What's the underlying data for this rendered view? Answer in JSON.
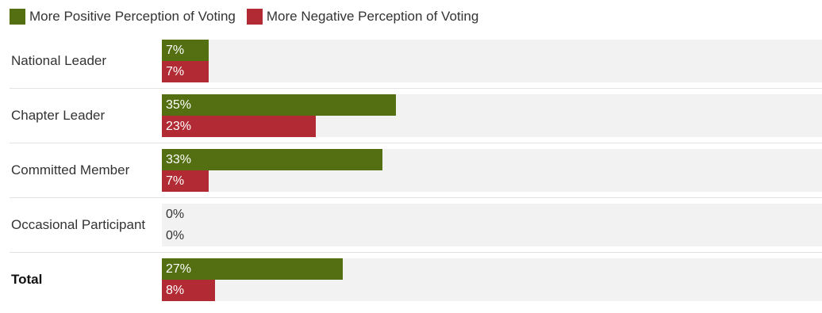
{
  "colors": {
    "positive": "#536f11",
    "negative": "#b22a33"
  },
  "legend": [
    {
      "label": "More Positive Perception of Voting",
      "color": "#536f11"
    },
    {
      "label": "More Negative Perception of Voting",
      "color": "#b22a33"
    }
  ],
  "chart_data": {
    "type": "bar",
    "orientation": "horizontal",
    "categories": [
      "National Leader",
      "Chapter Leader",
      "Committed Member",
      "Occasional Participant",
      "Total"
    ],
    "series": [
      {
        "name": "More Positive Perception of Voting",
        "values": [
          7,
          35,
          33,
          0,
          27
        ],
        "labels": [
          "7%",
          "35%",
          "33%",
          "0%",
          "27%"
        ]
      },
      {
        "name": "More Negative Perception of Voting",
        "values": [
          7,
          23,
          7,
          0,
          8
        ],
        "labels": [
          "7%",
          "23%",
          "7%",
          "0%",
          "8%"
        ]
      }
    ],
    "xlim": [
      0,
      100
    ],
    "bold_categories": [
      "Total"
    ],
    "legend_position": "top-left"
  }
}
